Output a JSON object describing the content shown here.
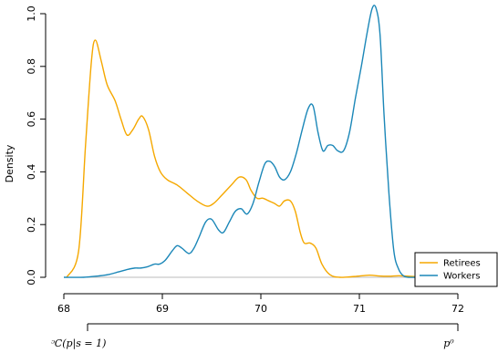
{
  "chart_data": {
    "type": "line",
    "title": "",
    "xlabel": "",
    "ylabel": "Density",
    "xlim": [
      68,
      72
    ],
    "ylim": [
      0,
      1.0
    ],
    "x_ticks": [
      68,
      69,
      70,
      71,
      72
    ],
    "x_tick_labels": [
      "68",
      "69",
      "70",
      "71",
      "72"
    ],
    "y_ticks": [
      0,
      0.2,
      0.4,
      0.6,
      0.8,
      1.0
    ],
    "y_tick_labels": [
      "0.0",
      "0.2",
      "0.4",
      "0.6",
      "0.8",
      "1.0"
    ],
    "grid": false,
    "legend_position": "bottom-right",
    "series": [
      {
        "name": "Retirees",
        "color": "#F5A800",
        "x": [
          68.03,
          68.15,
          68.22,
          68.28,
          68.32,
          68.38,
          68.44,
          68.52,
          68.58,
          68.64,
          68.7,
          68.76,
          68.8,
          68.86,
          68.92,
          68.98,
          69.05,
          69.15,
          69.25,
          69.35,
          69.45,
          69.52,
          69.6,
          69.7,
          69.78,
          69.85,
          69.9,
          69.96,
          70.02,
          70.08,
          70.14,
          70.19,
          70.24,
          70.3,
          70.35,
          70.4,
          70.44,
          70.5,
          70.56,
          70.62,
          70.7,
          70.8,
          70.95,
          71.1,
          71.2,
          71.3,
          71.4,
          71.5,
          71.6
        ],
        "y": [
          0.0,
          0.1,
          0.5,
          0.82,
          0.9,
          0.82,
          0.73,
          0.67,
          0.6,
          0.54,
          0.56,
          0.6,
          0.61,
          0.56,
          0.46,
          0.4,
          0.37,
          0.35,
          0.32,
          0.29,
          0.27,
          0.28,
          0.31,
          0.35,
          0.38,
          0.37,
          0.33,
          0.3,
          0.3,
          0.29,
          0.28,
          0.27,
          0.29,
          0.29,
          0.25,
          0.17,
          0.13,
          0.13,
          0.11,
          0.05,
          0.01,
          0.0,
          0.003,
          0.008,
          0.005,
          0.004,
          0.006,
          0.004,
          0.002
        ]
      },
      {
        "name": "Workers",
        "color": "#1B87B8",
        "x": [
          68.0,
          68.2,
          68.35,
          68.45,
          68.55,
          68.65,
          68.72,
          68.78,
          68.85,
          68.92,
          68.97,
          69.03,
          69.1,
          69.15,
          69.2,
          69.27,
          69.32,
          69.37,
          69.44,
          69.5,
          69.57,
          69.62,
          69.68,
          69.74,
          69.8,
          69.86,
          69.92,
          69.98,
          70.04,
          70.09,
          70.14,
          70.19,
          70.24,
          70.3,
          70.36,
          70.42,
          70.48,
          70.53,
          70.58,
          70.63,
          70.68,
          70.73,
          70.78,
          70.84,
          70.9,
          70.96,
          71.02,
          71.08,
          71.13,
          71.17,
          71.21,
          71.25,
          71.3,
          71.35,
          71.4,
          71.45,
          71.5,
          71.58
        ],
        "y": [
          0.0,
          0.0,
          0.005,
          0.01,
          0.02,
          0.03,
          0.035,
          0.035,
          0.04,
          0.05,
          0.05,
          0.065,
          0.1,
          0.12,
          0.11,
          0.09,
          0.11,
          0.15,
          0.21,
          0.22,
          0.18,
          0.17,
          0.21,
          0.25,
          0.26,
          0.24,
          0.28,
          0.36,
          0.43,
          0.44,
          0.42,
          0.38,
          0.37,
          0.4,
          0.47,
          0.56,
          0.64,
          0.65,
          0.55,
          0.48,
          0.5,
          0.5,
          0.48,
          0.48,
          0.55,
          0.68,
          0.8,
          0.93,
          1.02,
          1.02,
          0.92,
          0.62,
          0.32,
          0.1,
          0.03,
          0.005,
          0.0,
          0.0
        ]
      }
    ],
    "annotations": {
      "left_label": "ᵓC(p|s = 1)",
      "right_label": "p⁰"
    }
  }
}
